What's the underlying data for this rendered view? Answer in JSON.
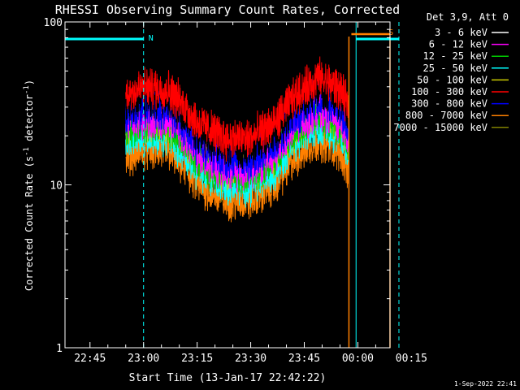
{
  "chart_data": {
    "type": "line",
    "title": "RHESSI Observing Summary Count Rates, Corrected",
    "xlabel": "Start Time (13-Jan-17 22:42:22)",
    "ylabel_main": "Corrected Count Rate (s",
    "ylabel_sup1": "-1",
    "ylabel_mid": " detector",
    "ylabel_sup2": "-1",
    "ylabel_end": ")",
    "yscale": "log",
    "ylim": [
      1,
      100
    ],
    "xlim_minutes": [
      -7,
      84
    ],
    "x_ticks": [
      {
        "m": 0,
        "label": "22:45"
      },
      {
        "m": 15,
        "label": "23:00"
      },
      {
        "m": 30,
        "label": "23:15"
      },
      {
        "m": 45,
        "label": "23:30"
      },
      {
        "m": 60,
        "label": "23:45"
      },
      {
        "m": 75,
        "label": "00:00"
      },
      {
        "m": 90,
        "label": "00:15"
      }
    ],
    "y_ticks": [
      {
        "v": 1,
        "label": "1"
      },
      {
        "v": 10,
        "label": "10"
      },
      {
        "v": 100,
        "label": "100"
      }
    ],
    "legend_title": "Det 3,9, Att 0",
    "legend_position": "right",
    "series": [
      {
        "name": "3 - 6 keV",
        "color": "#000000",
        "base": 2.1
      },
      {
        "name": "6 - 12 keV",
        "color": "#ff00ff",
        "base": 1.55
      },
      {
        "name": "12 - 25 keV",
        "color": "#00cc00",
        "base": 1.45
      },
      {
        "name": "25 - 50 keV",
        "color": "#00ffff",
        "base": 1.25
      },
      {
        "name": "50 - 100 keV",
        "color": "#cccc00",
        "base": 1.5
      },
      {
        "name": "100 - 300 keV",
        "color": "#ff0000",
        "base": 2.4
      },
      {
        "name": "300 - 800 keV",
        "color": "#0000ff",
        "base": 1.8
      },
      {
        "name": "800 - 7000 keV",
        "color": "#ff8000",
        "base": 1.0
      },
      {
        "name": "7000 - 15000 keV",
        "color": "#808000",
        "base": 1.3
      }
    ],
    "profile_minutes": [
      10,
      15,
      22,
      30,
      38,
      45,
      52,
      58,
      64,
      70,
      72.5
    ],
    "profile_factor": [
      15,
      16.5,
      16,
      10,
      8,
      8,
      10,
      15,
      19,
      16,
      12
    ],
    "flags": [
      {
        "label": "N",
        "start": -7,
        "end": 15,
        "color": "#00ffff"
      },
      {
        "label": "S",
        "start": 74.5,
        "end": 86.5,
        "color": "#00ffff"
      }
    ],
    "cyan_dashed_lines_minutes": [
      15,
      86.5
    ],
    "cyan_solid_lines_minutes": [
      -7,
      74.5
    ],
    "orange_lines_minutes": [
      72.5,
      84
    ],
    "orange_flag_label": "S"
  },
  "footer": {
    "timestamp": "1-Sep-2022 22:41"
  }
}
